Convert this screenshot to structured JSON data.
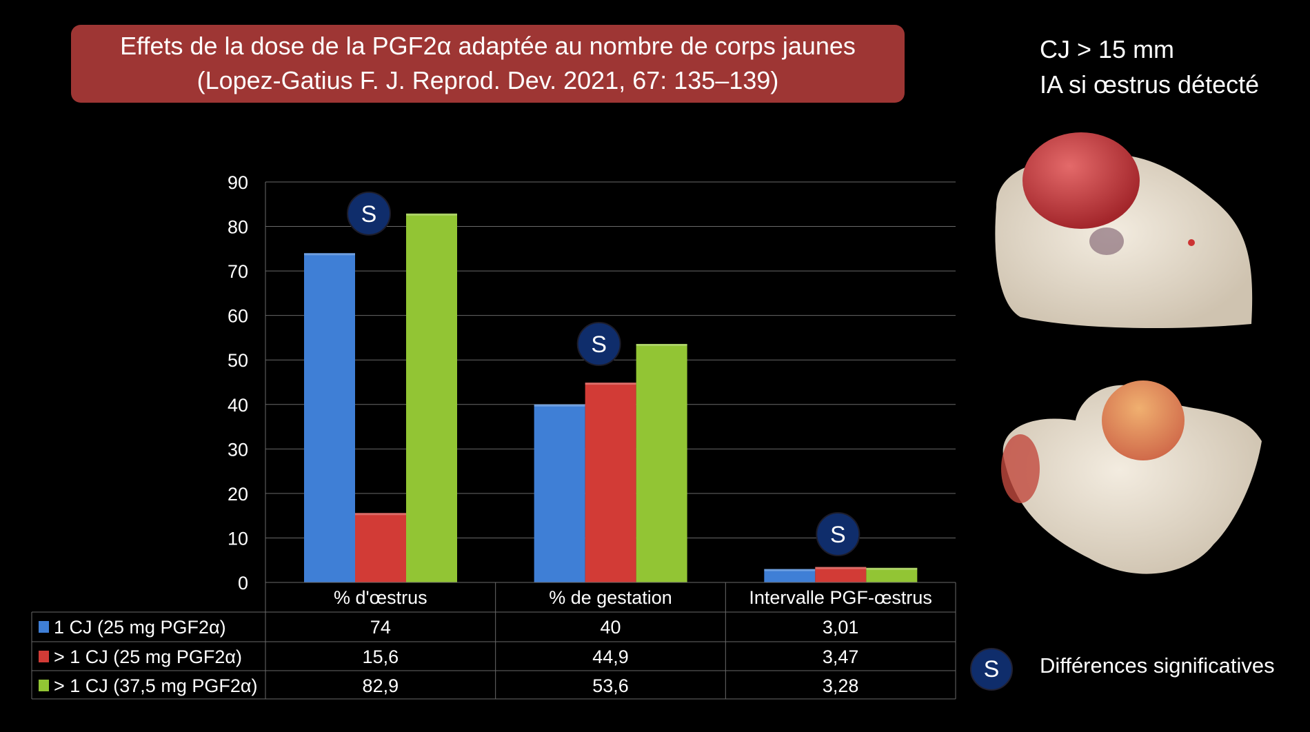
{
  "title": {
    "line1": "Effets de la dose de la PGF2α adaptée au nombre de corps jaunes",
    "line2": "(Lopez-Gatius F. J. Reprod. Dev. 2021, 67: 135–139)"
  },
  "side_notes": {
    "line1": "CJ > 15 mm",
    "line2": "IA si œstrus détecté"
  },
  "legend_note": {
    "symbol": "S",
    "text": "Différences significatives"
  },
  "chart_data": {
    "type": "bar",
    "title": "",
    "categories": [
      "% d'œstrus",
      "% de gestation",
      "Intervalle PGF-œstrus"
    ],
    "series": [
      {
        "name": "1 CJ (25 mg PGF2α)",
        "color": "#3f7fd6",
        "values": [
          74,
          40,
          3.01
        ],
        "labels": [
          "74",
          "40",
          "3,01"
        ]
      },
      {
        "name": "> 1 CJ  (25 mg PGF2α)",
        "color": "#d23b36",
        "values": [
          15.6,
          44.9,
          3.47
        ],
        "labels": [
          "15,6",
          "44,9",
          "3,47"
        ]
      },
      {
        "name": "> 1 CJ  (37,5 mg PGF2α)",
        "color": "#92c534",
        "values": [
          82.9,
          53.6,
          3.28
        ],
        "labels": [
          "82,9",
          "53,6",
          "3,28"
        ]
      }
    ],
    "ylim": [
      0,
      90
    ],
    "yticks": [
      "0",
      "10",
      "20",
      "30",
      "40",
      "50",
      "60",
      "70",
      "80",
      "90"
    ],
    "grid": true,
    "legend": "data-table-below",
    "significance_marker": "S",
    "significant_categories": [
      0,
      1,
      2
    ]
  }
}
